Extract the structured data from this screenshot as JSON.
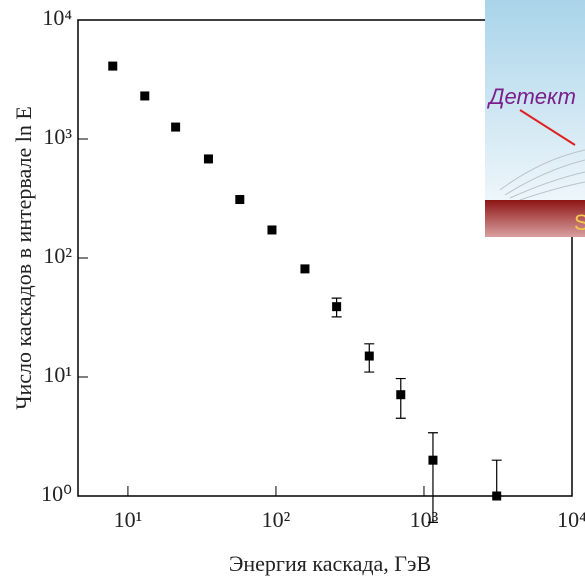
{
  "chart_data": {
    "type": "scatter",
    "xlabel": "Энергия каскада, ГэВ",
    "ylabel": "Число каскадов в интервале ln E",
    "x": [
      7.9,
      13,
      21,
      35,
      57,
      94,
      157,
      257,
      427,
      697,
      1150,
      3100
    ],
    "values": [
      4100,
      2300,
      1260,
      680,
      310,
      172,
      81,
      39,
      15,
      7.1,
      2.0,
      1.0
    ],
    "errors": [
      0,
      0,
      0,
      0,
      0,
      0,
      0,
      7,
      4,
      2.6,
      1.4,
      1.0
    ],
    "color": "#000000",
    "log_x": true,
    "log_y": true,
    "xlim": [
      4.6,
      10000
    ],
    "ylim": [
      1,
      10000
    ],
    "xticks": [
      {
        "value": 10,
        "label": "10¹"
      },
      {
        "value": 100,
        "label": "10²"
      },
      {
        "value": 1000,
        "label": "10³"
      },
      {
        "value": 10000,
        "label": "10⁴"
      }
    ],
    "yticks": [
      {
        "value": 1,
        "label": "10⁰"
      },
      {
        "value": 10,
        "label": "10¹"
      },
      {
        "value": 100,
        "label": "10²"
      },
      {
        "value": 1000,
        "label": "10³"
      },
      {
        "value": 10000,
        "label": "10⁴"
      }
    ]
  },
  "inset": {
    "labels": [
      "Детект",
      "S"
    ]
  }
}
